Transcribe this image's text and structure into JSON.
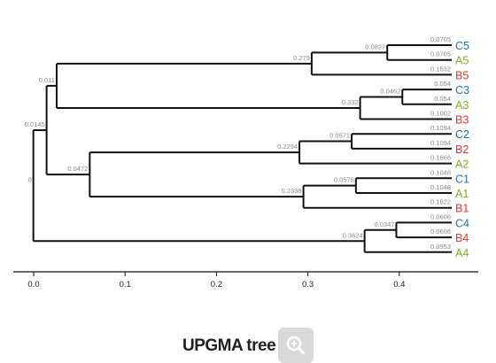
{
  "tree": {
    "axis_ticks": [
      "0.0",
      "0.1",
      "0.2",
      "0.3",
      "0.4"
    ],
    "tips": [
      {
        "name": "C5",
        "group": "C",
        "branch": "0.0705"
      },
      {
        "name": "A5",
        "group": "A",
        "branch": "0.0705"
      },
      {
        "name": "B5",
        "group": "B",
        "branch": "0.1532"
      },
      {
        "name": "C3",
        "group": "C",
        "branch": "0.054"
      },
      {
        "name": "A3",
        "group": "A",
        "branch": "0.054"
      },
      {
        "name": "B3",
        "group": "B",
        "branch": "0.1002"
      },
      {
        "name": "C2",
        "group": "C",
        "branch": "0.1094"
      },
      {
        "name": "B2",
        "group": "B",
        "branch": "0.1094"
      },
      {
        "name": "A2",
        "group": "A",
        "branch": "0.1666"
      },
      {
        "name": "C1",
        "group": "C",
        "branch": "0.1048"
      },
      {
        "name": "A1",
        "group": "A",
        "branch": "0.1048"
      },
      {
        "name": "B1",
        "group": "B",
        "branch": "0.1622"
      },
      {
        "name": "C4",
        "group": "C",
        "branch": "0.0606"
      },
      {
        "name": "B4",
        "group": "B",
        "branch": "0.0606"
      },
      {
        "name": "A4",
        "group": "A",
        "branch": "0.0953"
      }
    ],
    "internal_nodes": [
      {
        "id": "n_c5a5",
        "height": 0.0705,
        "children": [
          "C5",
          "A5"
        ],
        "label": "0.0827"
      },
      {
        "id": "n_g5",
        "height": 0.1532,
        "children": [
          "n_c5a5",
          "B5"
        ],
        "label": "0.279"
      },
      {
        "id": "n_c3a3",
        "height": 0.054,
        "children": [
          "C3",
          "A3"
        ],
        "label": "0.0462"
      },
      {
        "id": "n_g3",
        "height": 0.1002,
        "children": [
          "n_c3a3",
          "B3"
        ],
        "label": "0.332"
      },
      {
        "id": "n_g35",
        "height": 0.4322,
        "children": [
          "n_g5",
          "n_g3"
        ],
        "label": "0.011"
      },
      {
        "id": "n_c2b2",
        "height": 0.1094,
        "children": [
          "C2",
          "B2"
        ],
        "label": "0.0571"
      },
      {
        "id": "n_g2",
        "height": 0.1666,
        "children": [
          "n_c2b2",
          "A2"
        ],
        "label": "0.2294"
      },
      {
        "id": "n_c1a1",
        "height": 0.1048,
        "children": [
          "C1",
          "A1"
        ],
        "label": "0.0575"
      },
      {
        "id": "n_g1",
        "height": 0.1622,
        "children": [
          "n_c1a1",
          "B1"
        ],
        "label": "0.2338"
      },
      {
        "id": "n_g12",
        "height": 0.396,
        "children": [
          "n_g2",
          "n_g1"
        ],
        "label": "0.0472"
      },
      {
        "id": "n_g1235",
        "height": 0.4432,
        "children": [
          "n_g35",
          "n_g12"
        ],
        "label": "0.0145"
      },
      {
        "id": "n_c4b4",
        "height": 0.0606,
        "children": [
          "C4",
          "B4"
        ],
        "label": "0.0347"
      },
      {
        "id": "n_g4",
        "height": 0.0953,
        "children": [
          "n_c4b4",
          "A4"
        ],
        "label": "0.3624"
      },
      {
        "id": "n_root",
        "height": 0.4577,
        "children": [
          "n_g1235",
          "n_g4"
        ],
        "label": "0"
      }
    ],
    "group_colors": {
      "A": "#7ab317",
      "B": "#e8332e",
      "C": "#2272b8"
    }
  },
  "caption": "UPGMA tree",
  "zoom_button": {
    "icon": "zoom-in-icon"
  }
}
